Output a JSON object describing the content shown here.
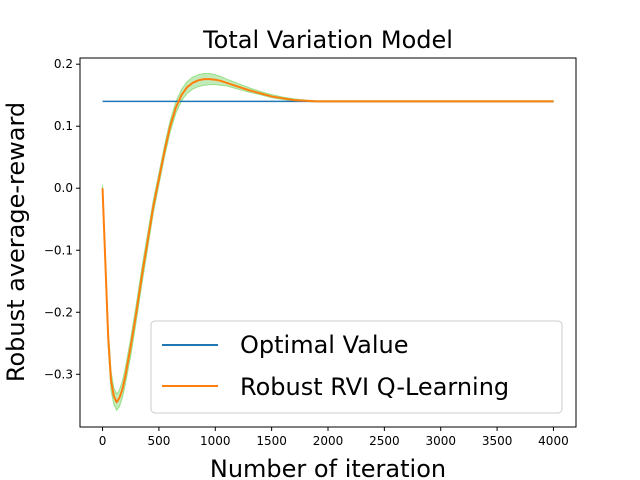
{
  "chart_data": {
    "type": "line",
    "title": "Total Variation Model",
    "xlabel": "Number of iteration",
    "ylabel": "Robust average-reward",
    "xlim": [
      -200,
      4200
    ],
    "ylim": [
      -0.385,
      0.21
    ],
    "xticks": [
      0,
      500,
      1000,
      1500,
      2000,
      2500,
      3000,
      3500,
      4000
    ],
    "yticks": [
      -0.3,
      -0.2,
      -0.1,
      0.0,
      0.1,
      0.2
    ],
    "ytick_labels": [
      "−0.3",
      "−0.2",
      "−0.1",
      "0.0",
      "0.1",
      "0.2"
    ],
    "grid": false,
    "legend_position": "lower-right",
    "colors": {
      "optimal": "#1f77b4",
      "rvi": "#ff7f0e",
      "band": "#98df8a"
    },
    "series": [
      {
        "name": "Optimal Value",
        "x": [
          0,
          4000
        ],
        "y": [
          0.14,
          0.14
        ]
      },
      {
        "name": "Robust RVI Q-Learning",
        "x": [
          0,
          25,
          50,
          75,
          100,
          125,
          150,
          175,
          200,
          250,
          300,
          350,
          400,
          450,
          500,
          550,
          600,
          650,
          700,
          750,
          800,
          850,
          900,
          950,
          1000,
          1050,
          1100,
          1200,
          1300,
          1400,
          1500,
          1600,
          1700,
          1800,
          1900,
          2000,
          2200,
          2500,
          3000,
          3500,
          4000
        ],
        "y": [
          0.0,
          -0.12,
          -0.24,
          -0.31,
          -0.335,
          -0.345,
          -0.338,
          -0.325,
          -0.305,
          -0.255,
          -0.2,
          -0.14,
          -0.085,
          -0.03,
          0.015,
          0.06,
          0.1,
          0.13,
          0.15,
          0.163,
          0.17,
          0.174,
          0.176,
          0.176,
          0.175,
          0.173,
          0.17,
          0.164,
          0.158,
          0.153,
          0.148,
          0.145,
          0.142,
          0.141,
          0.14,
          0.14,
          0.14,
          0.14,
          0.14,
          0.14,
          0.14
        ]
      }
    ],
    "band": {
      "x": [
        0,
        25,
        50,
        75,
        100,
        125,
        150,
        175,
        200,
        250,
        300,
        350,
        400,
        450,
        500,
        550,
        600,
        650,
        700,
        750,
        800,
        850,
        900,
        950,
        1000,
        1050,
        1100,
        1200,
        1300,
        1400,
        1500,
        1600,
        1700,
        1800,
        1900,
        2000,
        2200,
        2500,
        3000,
        3500,
        4000
      ],
      "lower": [
        -0.005,
        -0.13,
        -0.255,
        -0.325,
        -0.348,
        -0.358,
        -0.352,
        -0.338,
        -0.318,
        -0.27,
        -0.213,
        -0.153,
        -0.097,
        -0.04,
        0.006,
        0.051,
        0.091,
        0.121,
        0.141,
        0.153,
        0.16,
        0.164,
        0.166,
        0.167,
        0.167,
        0.166,
        0.165,
        0.16,
        0.155,
        0.151,
        0.146,
        0.143,
        0.141,
        0.14,
        0.139,
        0.139,
        0.139,
        0.139,
        0.139,
        0.139,
        0.139
      ],
      "upper": [
        0.005,
        -0.11,
        -0.225,
        -0.295,
        -0.322,
        -0.332,
        -0.325,
        -0.312,
        -0.292,
        -0.242,
        -0.187,
        -0.127,
        -0.073,
        -0.02,
        0.024,
        0.069,
        0.109,
        0.139,
        0.159,
        0.172,
        0.179,
        0.183,
        0.185,
        0.185,
        0.183,
        0.18,
        0.176,
        0.169,
        0.162,
        0.156,
        0.151,
        0.147,
        0.144,
        0.142,
        0.141,
        0.141,
        0.141,
        0.141,
        0.141,
        0.141,
        0.141
      ]
    }
  }
}
